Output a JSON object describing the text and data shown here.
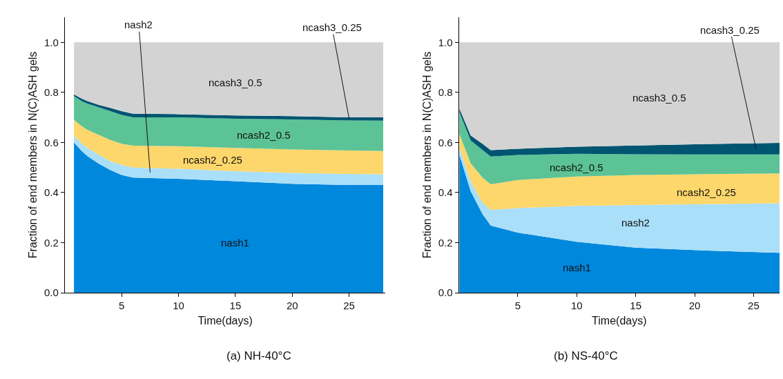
{
  "chart_data": [
    {
      "type": "area",
      "stacked": true,
      "title": "(a) NH-40°C",
      "xlabel": "Time(days)",
      "ylabel": "Fraction of end members in N(C)ASH gels",
      "x": [
        0.8,
        1.5,
        2,
        3,
        4,
        5,
        6,
        10,
        15,
        20,
        25,
        28
      ],
      "series": [
        {
          "name": "nash1",
          "color": "#0088dd",
          "values": [
            0.6,
            0.565,
            0.545,
            0.515,
            0.49,
            0.47,
            0.46,
            0.455,
            0.445,
            0.435,
            0.43,
            0.43
          ]
        },
        {
          "name": "nash2",
          "color": "#aadff9",
          "values": [
            0.027,
            0.03,
            0.033,
            0.035,
            0.035,
            0.04,
            0.04,
            0.04,
            0.04,
            0.043,
            0.044,
            0.043
          ]
        },
        {
          "name": "ncash2_0.25",
          "color": "#fdd76b",
          "values": [
            0.063,
            0.07,
            0.072,
            0.08,
            0.085,
            0.085,
            0.087,
            0.09,
            0.093,
            0.094,
            0.094,
            0.093
          ]
        },
        {
          "name": "ncash2_0.5",
          "color": "#5cc396",
          "values": [
            0.095,
            0.1,
            0.105,
            0.11,
            0.115,
            0.115,
            0.113,
            0.115,
            0.117,
            0.12,
            0.12,
            0.121
          ]
        },
        {
          "name": "ncash3_0.25",
          "color": "#005571",
          "values": [
            0.007,
            0.01,
            0.01,
            0.01,
            0.013,
            0.015,
            0.015,
            0.013,
            0.013,
            0.013,
            0.012,
            0.013
          ]
        },
        {
          "name": "ncash3_0.5",
          "color": "#d3d3d3",
          "values": [
            0.208,
            0.225,
            0.235,
            0.25,
            0.262,
            0.275,
            0.285,
            0.287,
            0.292,
            0.295,
            0.3,
            0.3
          ]
        }
      ],
      "xlim": [
        0,
        28.2
      ],
      "ylim": [
        0,
        1.1
      ],
      "xticks": [
        5,
        10,
        15,
        20,
        25
      ],
      "yticks": [
        {
          "value": 0,
          "label": "0.0"
        },
        {
          "value": 0.2,
          "label": "0.2"
        },
        {
          "value": 0.4,
          "label": "0.4"
        },
        {
          "value": 0.6,
          "label": "0.6"
        },
        {
          "value": 0.8,
          "label": "0.8"
        },
        {
          "value": 1.0,
          "label": "1.0"
        }
      ]
    },
    {
      "type": "area",
      "stacked": true,
      "title": "(b) NS-40°C",
      "xlabel": "Time(days)",
      "ylabel": "Fraction of end members in N(C)ASH gels",
      "x": [
        0.05,
        1,
        2,
        2.7,
        5,
        10,
        15,
        20,
        27.2
      ],
      "series": [
        {
          "name": "nash1",
          "color": "#0088dd",
          "values": [
            0.55,
            0.405,
            0.314,
            0.268,
            0.24,
            0.203,
            0.18,
            0.17,
            0.159
          ]
        },
        {
          "name": "nash2",
          "color": "#aadff9",
          "values": [
            0.028,
            0.04,
            0.046,
            0.063,
            0.098,
            0.144,
            0.17,
            0.183,
            0.198
          ]
        },
        {
          "name": "ncash2_0.25",
          "color": "#fdd76b",
          "values": [
            0.055,
            0.072,
            0.1,
            0.102,
            0.112,
            0.117,
            0.12,
            0.12,
            0.119
          ]
        },
        {
          "name": "ncash2_0.5",
          "color": "#5cc396",
          "values": [
            0.087,
            0.091,
            0.11,
            0.111,
            0.1,
            0.091,
            0.083,
            0.079,
            0.076
          ]
        },
        {
          "name": "ncash3_0.25",
          "color": "#005571",
          "values": [
            0.015,
            0.02,
            0.025,
            0.025,
            0.025,
            0.028,
            0.035,
            0.041,
            0.046
          ]
        },
        {
          "name": "ncash3_0.5",
          "color": "#d3d3d3",
          "values": [
            0.265,
            0.372,
            0.405,
            0.431,
            0.425,
            0.417,
            0.412,
            0.407,
            0.402
          ]
        }
      ],
      "xlim": [
        0,
        27.2
      ],
      "ylim": [
        0,
        1.1
      ],
      "xticks": [
        5,
        10,
        15,
        20,
        25
      ],
      "yticks": [
        {
          "value": 0,
          "label": "0.0"
        },
        {
          "value": 0.2,
          "label": "0.2"
        },
        {
          "value": 0.4,
          "label": "0.4"
        },
        {
          "value": 0.6,
          "label": "0.6"
        },
        {
          "value": 0.8,
          "label": "0.8"
        },
        {
          "value": 1.0,
          "label": "1.0"
        }
      ]
    }
  ]
}
